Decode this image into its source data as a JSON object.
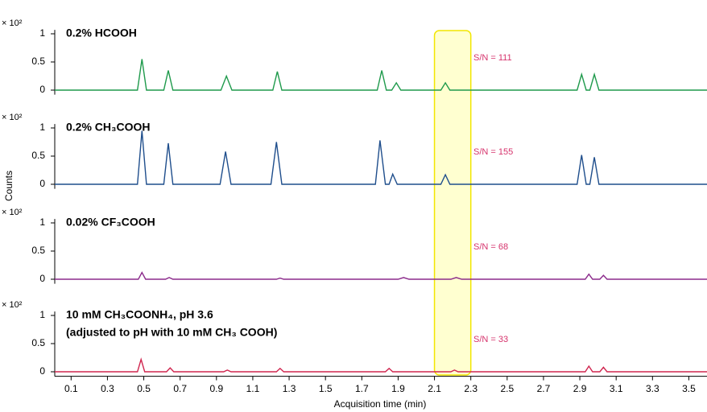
{
  "chart_data": [
    {
      "type": "line",
      "title": "0.2% HCOOH",
      "annotation": "S/N = 111",
      "y_multiplier": "× 10²",
      "color": "#1f9a4c",
      "xlim": [
        0.01,
        3.6
      ],
      "ylim": [
        -0.08,
        1.07
      ],
      "yticks": [
        0,
        0.5,
        1
      ],
      "highlight_x": [
        2.1,
        2.3
      ],
      "x": [
        0.01,
        0.465,
        0.49,
        0.515,
        0.61,
        0.635,
        0.66,
        0.925,
        0.955,
        0.985,
        1.21,
        1.235,
        1.26,
        1.785,
        1.81,
        1.835,
        1.865,
        1.89,
        1.915,
        2.135,
        2.16,
        2.185,
        2.885,
        2.91,
        2.935,
        2.955,
        2.98,
        3.005,
        3.6
      ],
      "values": [
        0,
        0,
        0.55,
        0,
        0,
        0.35,
        0,
        0,
        0.25,
        0,
        0,
        0.33,
        0,
        0,
        0.35,
        0,
        0,
        0.13,
        0,
        0,
        0.13,
        0,
        0,
        0.28,
        0,
        0,
        0.28,
        0,
        0
      ]
    },
    {
      "type": "line",
      "title": "0.2% CH₃COOH",
      "annotation": "S/N = 155",
      "y_multiplier": "× 10²",
      "ylabel": "Counts",
      "color": "#1f4e8c",
      "xlim": [
        0.01,
        3.6
      ],
      "ylim": [
        -0.08,
        1.07
      ],
      "yticks": [
        0,
        0.5,
        1
      ],
      "x": [
        0.01,
        0.465,
        0.49,
        0.515,
        0.61,
        0.635,
        0.66,
        0.92,
        0.95,
        0.98,
        1.2,
        1.23,
        1.26,
        1.775,
        1.8,
        1.83,
        1.85,
        1.87,
        1.895,
        2.135,
        2.16,
        2.185,
        2.885,
        2.91,
        2.935,
        2.955,
        2.98,
        3.005,
        3.6
      ],
      "values": [
        0,
        0,
        0.95,
        0,
        0,
        0.73,
        0,
        0,
        0.58,
        0,
        0,
        0.75,
        0,
        0,
        0.78,
        0,
        0,
        0.18,
        0,
        0,
        0.17,
        0,
        0,
        0.52,
        0,
        0,
        0.48,
        0,
        0
      ]
    },
    {
      "type": "line",
      "title": "0.02% CF₃COOH",
      "annotation": "S/N = 68",
      "y_multiplier": "× 10²",
      "color": "#8b2a8b",
      "xlim": [
        0.01,
        3.6
      ],
      "ylim": [
        -0.08,
        1.07
      ],
      "yticks": [
        0,
        0.5,
        1
      ],
      "x": [
        0.01,
        0.47,
        0.49,
        0.51,
        0.62,
        0.64,
        0.66,
        1.23,
        1.25,
        1.27,
        1.9,
        1.93,
        1.96,
        2.19,
        2.22,
        2.25,
        2.93,
        2.95,
        2.97,
        3.01,
        3.03,
        3.05,
        3.6
      ],
      "values": [
        0,
        0,
        0.12,
        0,
        0,
        0.03,
        0,
        0,
        0.02,
        0,
        0,
        0.03,
        0,
        0,
        0.03,
        0,
        0,
        0.09,
        0,
        0,
        0.07,
        0,
        0
      ]
    },
    {
      "type": "line",
      "title": "10 mM CH₃COONH₄, pH 3.6",
      "subtitle": "(adjusted to pH with 10 mM CH₃ COOH)",
      "annotation": "S/N = 33",
      "y_multiplier": "× 10²",
      "color": "#d0264f",
      "xlabel": "Acquisition time (min)",
      "xlim": [
        0.01,
        3.6
      ],
      "ylim": [
        -0.08,
        1.07
      ],
      "yticks": [
        0,
        0.5,
        1
      ],
      "xticks": [
        0.1,
        0.3,
        0.5,
        0.7,
        0.9,
        1.1,
        1.3,
        1.5,
        1.7,
        1.9,
        2.1,
        2.3,
        2.5,
        2.7,
        2.9,
        3.1,
        3.3,
        3.5
      ],
      "x": [
        0.01,
        0.465,
        0.485,
        0.505,
        0.625,
        0.645,
        0.665,
        0.94,
        0.96,
        0.98,
        1.23,
        1.25,
        1.27,
        1.83,
        1.85,
        1.87,
        2.19,
        2.21,
        2.23,
        2.93,
        2.95,
        2.97,
        3.01,
        3.03,
        3.05,
        3.6
      ],
      "values": [
        0,
        0,
        0.22,
        0,
        0,
        0.07,
        0,
        0,
        0.03,
        0,
        0,
        0.06,
        0,
        0,
        0.06,
        0,
        0,
        0.03,
        0,
        0,
        0.1,
        0,
        0,
        0.08,
        0,
        0
      ]
    }
  ]
}
